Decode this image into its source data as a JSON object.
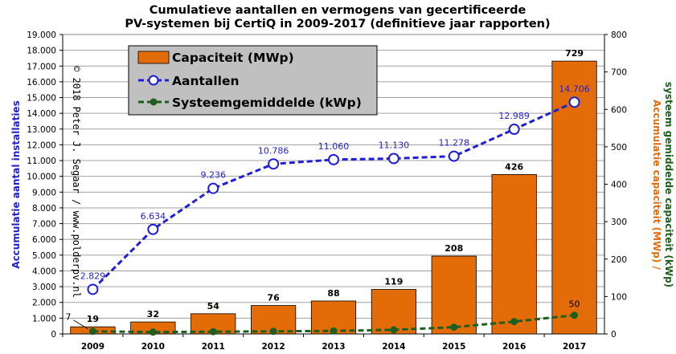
{
  "chart_data": {
    "type": "bar",
    "title": [
      "Cumulatieve aantallen en vermogens van gecertificeerde",
      "PV-systemen bij CertiQ in  2009-2017 (definitieve jaar rapporten)"
    ],
    "categories": [
      "2009",
      "2010",
      "2011",
      "2012",
      "2013",
      "2014",
      "2015",
      "2016",
      "2017"
    ],
    "ylabel_left": "Accumulatie  aantal installaties",
    "ylabel_right_1": "Accumulatie  capaciteit  (MWp)  /",
    "ylabel_right_2": "systeem  gemiddelde  capaciteit  (kWp)",
    "ylim_left": [
      0,
      19000
    ],
    "ylim_right": [
      0,
      800
    ],
    "left_ticks": [
      "0",
      "1.000",
      "2.000",
      "3.000",
      "4.000",
      "5.000",
      "6.000",
      "7.000",
      "8.000",
      "9.000",
      "10.000",
      "11.000",
      "12.000",
      "13.000",
      "14.000",
      "15.000",
      "16.000",
      "17.000",
      "18.000",
      "19.000"
    ],
    "right_ticks": [
      "0",
      "100",
      "200",
      "300",
      "400",
      "500",
      "600",
      "700",
      "800"
    ],
    "grid": true,
    "legend_position": "top-left",
    "series": [
      {
        "name": "Capaciteit (MWp)",
        "type": "bar",
        "axis": "right",
        "color": "#e36c09",
        "values": [
          19,
          32,
          54,
          76,
          88,
          119,
          208,
          426,
          729
        ],
        "labels": [
          "19",
          "32",
          "54",
          "76",
          "88",
          "119",
          "208",
          "426",
          "729"
        ]
      },
      {
        "name": "Aantallen",
        "type": "line",
        "axis": "left",
        "color": "#1f1fd6",
        "values": [
          2829,
          6634,
          9236,
          10786,
          11060,
          11130,
          11278,
          12989,
          14706
        ],
        "labels": [
          "2.829",
          "6.634",
          "9.236",
          "10.786",
          "11.060",
          "11.130",
          "11.278",
          "12.989",
          "14.706"
        ]
      },
      {
        "name": "Systeemgemiddelde (kWp)",
        "type": "line",
        "axis": "right",
        "color": "#1e5e1e",
        "values": [
          7,
          5,
          6,
          7,
          8,
          11,
          18,
          33,
          50
        ],
        "labels": [
          "7",
          "",
          "",
          "",
          "",
          "",
          "",
          "",
          "50"
        ]
      }
    ]
  },
  "watermark": "© 2018 Peter J. Segaar / www.polderpv.nl"
}
